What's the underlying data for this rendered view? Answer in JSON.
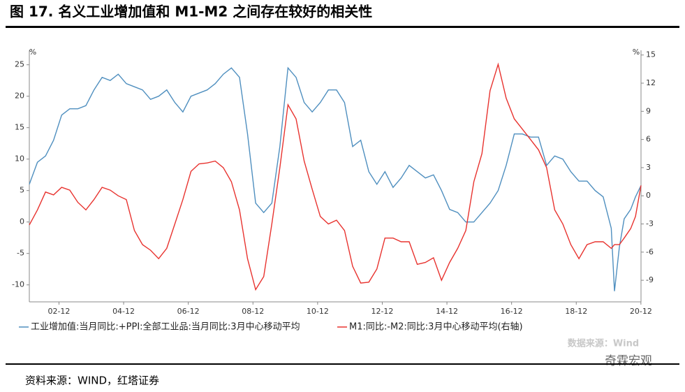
{
  "chart_data": {
    "type": "line",
    "title": "图 17. 名义工业增加值和 M1-M2 之间存在较好的相关性",
    "y_unit": "%",
    "y2_unit": "%",
    "watermark": "数据来源：Wind",
    "logo": "奇霖宏观",
    "source": "资料来源：WIND，红塔证券",
    "x": [
      2002.0,
      2002.25,
      2002.5,
      2002.75,
      2003.0,
      2003.25,
      2003.5,
      2003.75,
      2004.0,
      2004.25,
      2004.5,
      2004.75,
      2005.0,
      2005.25,
      2005.5,
      2005.75,
      2006.0,
      2006.25,
      2006.5,
      2006.75,
      2007.0,
      2007.25,
      2007.5,
      2007.75,
      2008.0,
      2008.25,
      2008.5,
      2008.75,
      2009.0,
      2009.25,
      2009.5,
      2009.75,
      2010.0,
      2010.25,
      2010.5,
      2010.75,
      2011.0,
      2011.25,
      2011.5,
      2011.75,
      2012.0,
      2012.25,
      2012.5,
      2012.75,
      2013.0,
      2013.25,
      2013.5,
      2013.75,
      2014.0,
      2014.25,
      2014.5,
      2014.75,
      2015.0,
      2015.25,
      2015.5,
      2015.75,
      2016.0,
      2016.25,
      2016.5,
      2016.75,
      2017.0,
      2017.25,
      2017.5,
      2017.75,
      2018.0,
      2018.25,
      2018.5,
      2018.75,
      2019.0,
      2019.25,
      2019.5,
      2019.75,
      2020.0,
      2020.1,
      2020.25,
      2020.4,
      2020.6,
      2020.75,
      2020.92
    ],
    "xlim": [
      2002.0,
      2020.92
    ],
    "xticks": [
      {
        "value": 2002.917,
        "label": "02-12"
      },
      {
        "value": 2004.917,
        "label": "04-12"
      },
      {
        "value": 2006.917,
        "label": "06-12"
      },
      {
        "value": 2008.917,
        "label": "08-12"
      },
      {
        "value": 2010.917,
        "label": "10-12"
      },
      {
        "value": 2012.917,
        "label": "12-12"
      },
      {
        "value": 2014.917,
        "label": "14-12"
      },
      {
        "value": 2016.917,
        "label": "16-12"
      },
      {
        "value": 2018.917,
        "label": "18-12"
      },
      {
        "value": 2020.917,
        "label": "20-12"
      }
    ],
    "ylim": [
      -12.7,
      27.3
    ],
    "yticks": [
      -10,
      -5,
      0,
      5,
      10,
      15,
      20,
      25
    ],
    "y2lim": [
      -11.3,
      15.5
    ],
    "y2ticks": [
      -9,
      -6,
      -3,
      0,
      3,
      6,
      9,
      12,
      15
    ],
    "series": [
      {
        "name": "工业增加值:当月同比:+PPI:全部工业品:当月同比:3月中心移动平均",
        "color": "#4f8fbf",
        "values": [
          6,
          9.5,
          10.5,
          13,
          17,
          18,
          18,
          18.5,
          21,
          23,
          22.5,
          23.5,
          22,
          21.5,
          21,
          19.5,
          20,
          21,
          19,
          17.5,
          20,
          20.5,
          21,
          22,
          23.5,
          24.5,
          23,
          14,
          3,
          1.5,
          3,
          12,
          24.5,
          23,
          19,
          17.5,
          19,
          21,
          21,
          19,
          12,
          13,
          8,
          6,
          8,
          5.5,
          7,
          9,
          8,
          7,
          7.5,
          5,
          2,
          1.5,
          0,
          0,
          1.5,
          3,
          5,
          9,
          14,
          14,
          13.5,
          13.5,
          9,
          10.5,
          10,
          8,
          6.5,
          6.5,
          5,
          4,
          -1,
          -11,
          -4,
          0.5,
          2,
          4,
          5.8
        ]
      },
      {
        "name": "M1:同比:-M2:同比:3月中心移动平均(右轴)",
        "color": "#e8332f",
        "axis": "y2",
        "values": [
          -3.1,
          -1.5,
          0.4,
          0.1,
          0.9,
          0.6,
          -0.7,
          -1.5,
          -0.4,
          0.9,
          0.6,
          0,
          -0.4,
          -3.7,
          -5.2,
          -5.8,
          -6.7,
          -5.6,
          -3,
          -0.4,
          2.6,
          3.4,
          3.5,
          3.7,
          3,
          1.5,
          -1.5,
          -6.7,
          -10,
          -8.6,
          -3,
          3,
          9.7,
          8.2,
          3.7,
          0.7,
          -2.2,
          -3,
          -2.6,
          -3.7,
          -7.5,
          -9.3,
          -9.2,
          -7.8,
          -4.5,
          -4.5,
          -4.9,
          -4.9,
          -7.3,
          -7.1,
          -6.6,
          -9,
          -7.1,
          -5.6,
          -3.7,
          1.5,
          4.5,
          11.2,
          14,
          10.4,
          8.2,
          7.1,
          6,
          4.9,
          3,
          -1.5,
          -3,
          -5.2,
          -6.7,
          -5.2,
          -4.9,
          -4.9,
          -5.6,
          -5.2,
          -5.2,
          -4.5,
          -3.5,
          -2.2,
          1.1
        ]
      }
    ]
  }
}
